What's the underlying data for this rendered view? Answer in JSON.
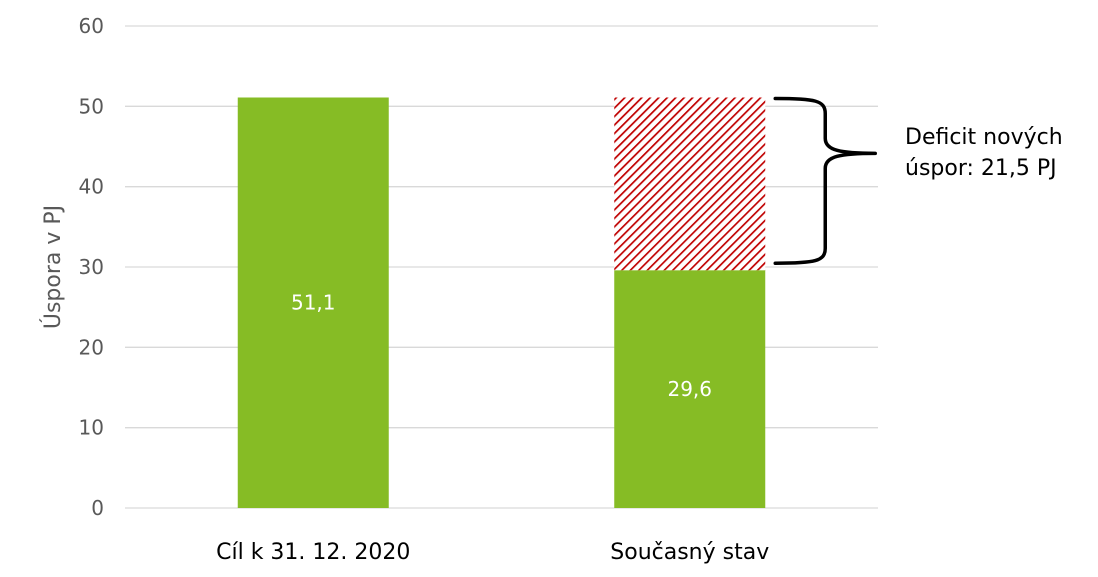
{
  "chart_data": {
    "type": "bar",
    "stacked": true,
    "categories": [
      "Cíl k 31. 12. 2020",
      "Současný stav"
    ],
    "series": [
      {
        "values": [
          51.1,
          29.6
        ],
        "labels": [
          "51,1",
          "29,6"
        ],
        "color": "#86bc25",
        "pattern": "solid"
      },
      {
        "values": [
          0,
          21.5
        ],
        "color": "#c00000",
        "pattern": "diagonal-hatch"
      }
    ],
    "ylabel": "Úspora v PJ",
    "ylim": [
      0,
      60
    ],
    "yticks": [
      "0",
      "10",
      "20",
      "30",
      "40",
      "50",
      "60"
    ],
    "grid": true,
    "annotation": {
      "lines": [
        "Deficit nových",
        "úspor: 21,5 PJ"
      ],
      "range": [
        29.6,
        51.1
      ]
    }
  },
  "colors": {
    "gridline": "#d9d9d9",
    "axis_text": "#595959",
    "bar_green": "#86bc25",
    "hatch_red": "#c00000"
  }
}
